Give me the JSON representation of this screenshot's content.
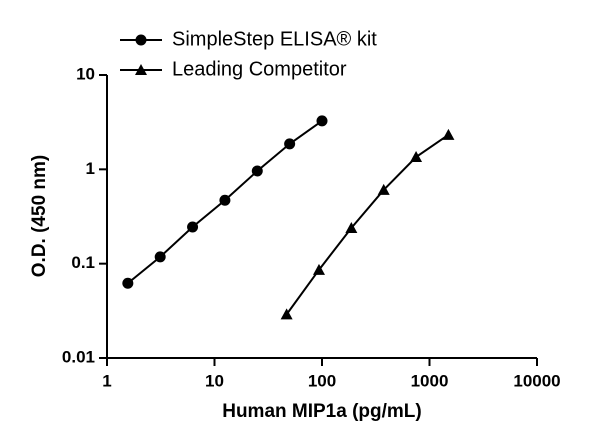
{
  "chart_data": {
    "type": "line",
    "xlabel": "Human MIP1a (pg/mL)",
    "ylabel": "O.D. (450 nm)",
    "xscale": "log",
    "yscale": "log",
    "xlim": [
      1,
      10000
    ],
    "ylim": [
      0.01,
      10
    ],
    "xticks": [
      1,
      10,
      100,
      1000,
      10000
    ],
    "yticks": [
      0.01,
      0.1,
      1,
      10
    ],
    "grid": false,
    "legend": "top-left",
    "series": [
      {
        "name": "SimpleStep ELISA® kit",
        "color": "#000000",
        "marker": "circle",
        "x": [
          1.5625,
          3.125,
          6.25,
          12.5,
          25,
          50,
          100
        ],
        "values": [
          0.062,
          0.118,
          0.245,
          0.47,
          0.96,
          1.86,
          3.26
        ]
      },
      {
        "name": "Leading Competitor",
        "color": "#000000",
        "marker": "triangle",
        "x": [
          46.875,
          93.75,
          187.5,
          375,
          750,
          1500
        ],
        "values": [
          0.029,
          0.086,
          0.239,
          0.605,
          1.35,
          2.32
        ]
      }
    ]
  }
}
